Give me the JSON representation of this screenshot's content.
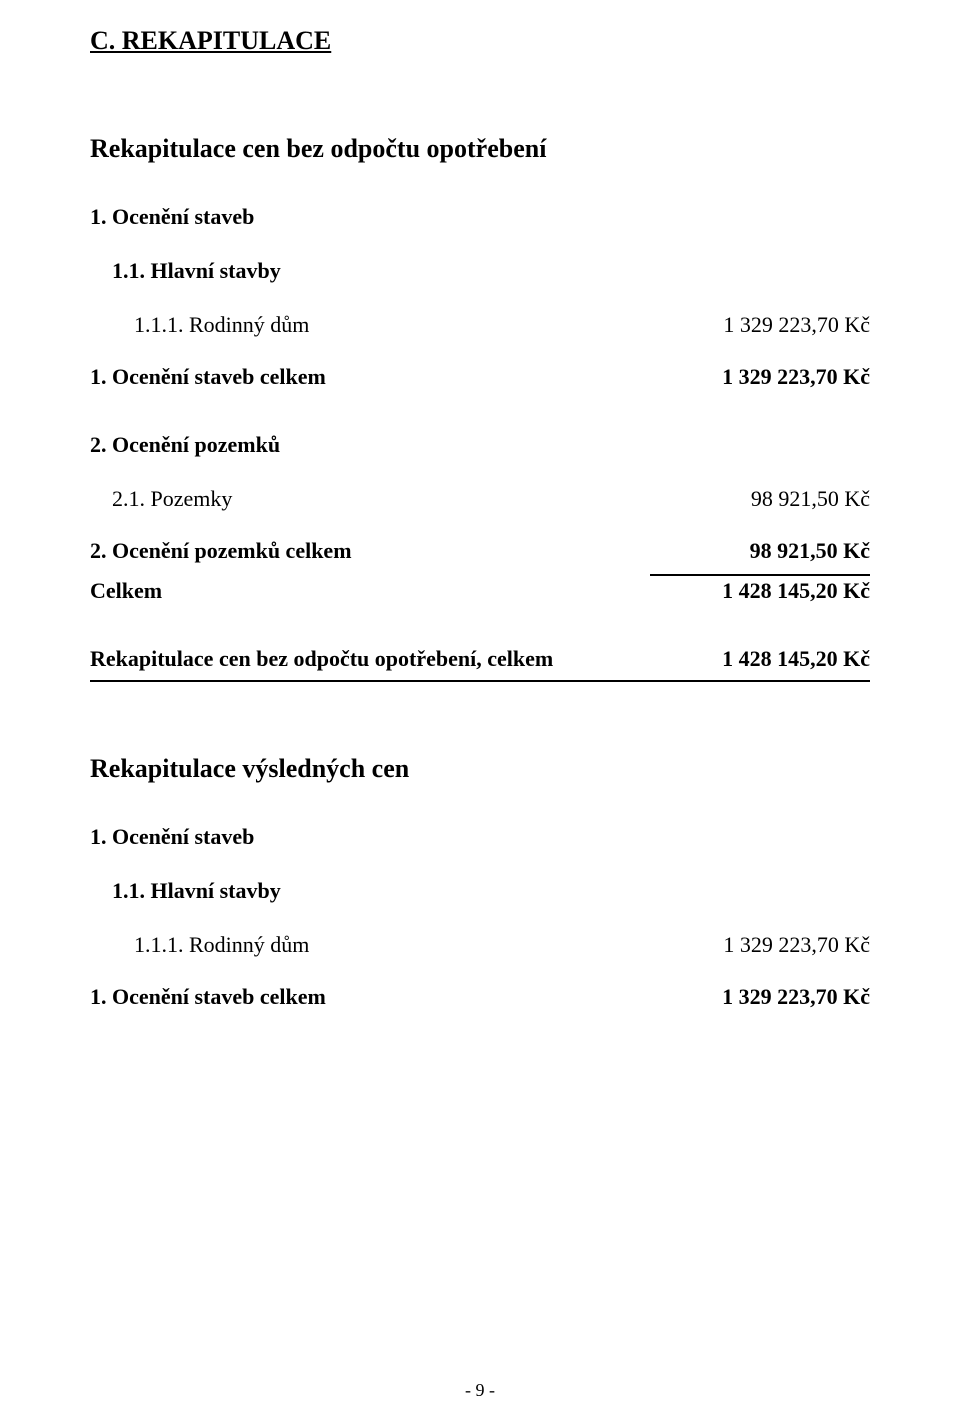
{
  "doc": {
    "title": "C. REKAPITULACE",
    "page_number": "- 9 -"
  },
  "recap_no_dep": {
    "title": "Rekapitulace cen bez odpočtu opotřebení",
    "section1": {
      "heading": "1. Ocenění staveb",
      "sub1": "1.1. Hlavní stavby",
      "item1_label": "1.1.1. Rodinný dům",
      "item1_value": "1 329 223,70 Kč",
      "total_label": "1. Ocenění staveb celkem",
      "total_value": "1 329 223,70 Kč"
    },
    "section2": {
      "heading": "2. Ocenění pozemků",
      "item1_label": "2.1. Pozemky",
      "item1_value": "98 921,50 Kč",
      "total_label": "2. Ocenění pozemků celkem",
      "total_value": "98 921,50 Kč"
    },
    "grand": {
      "label": "Celkem",
      "value": "1 428 145,20 Kč"
    },
    "final": {
      "label": "Rekapitulace cen bez odpočtu opotřebení, celkem",
      "value": "1 428 145,20 Kč"
    }
  },
  "recap_final": {
    "title": "Rekapitulace výsledných cen",
    "section1": {
      "heading": "1. Ocenění staveb",
      "sub1": "1.1. Hlavní stavby",
      "item1_label": "1.1.1. Rodinný dům",
      "item1_value": "1 329 223,70 Kč",
      "total_label": "1. Ocenění staveb celkem",
      "total_value": "1 329 223,70 Kč"
    }
  }
}
